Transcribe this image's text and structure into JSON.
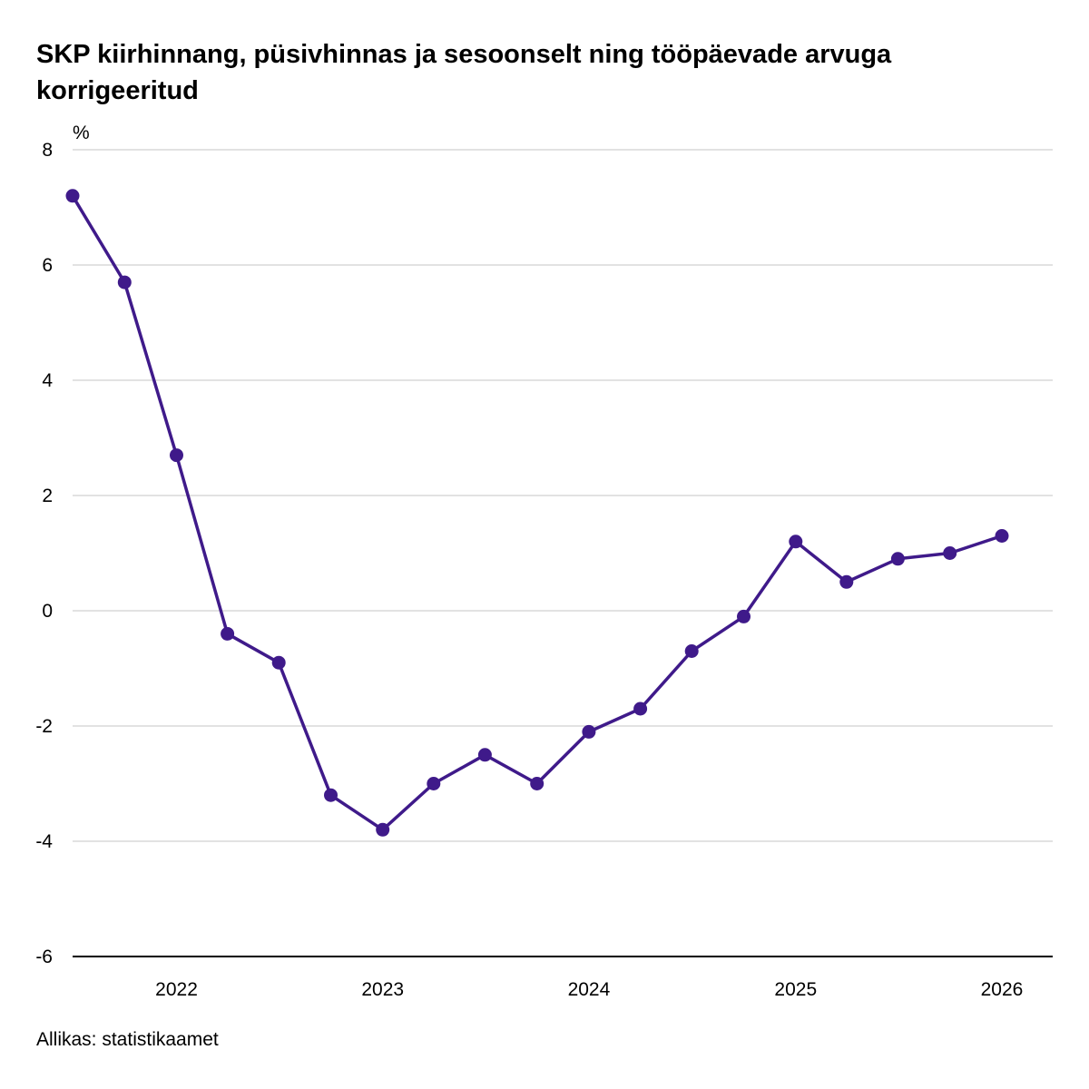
{
  "chart_data": {
    "type": "line",
    "title": "SKP kiirhinnang, püsivhinnas ja sesoonselt ning tööpäevade arvuga korrigeeritud",
    "ylabel": "%",
    "xlabel": "",
    "ylim": [
      -6,
      8
    ],
    "yticks": [
      8,
      6,
      4,
      2,
      0,
      -2,
      -4,
      -6
    ],
    "yticklabels": [
      "8",
      "6",
      "4",
      "2",
      "0",
      "-2",
      "-4",
      "-6"
    ],
    "xlim": [
      "2021-07-01",
      "2026-04-01"
    ],
    "xticks": [
      "2022-01-01",
      "2023-01-01",
      "2024-01-01",
      "2025-01-01",
      "2026-01-01"
    ],
    "xticklabels": [
      "2022",
      "2023",
      "2024",
      "2025",
      "2026"
    ],
    "grid": true,
    "legend": "none",
    "color": "#3f1a8a",
    "series": [
      {
        "x": [
          "2021-07-01",
          "2021-10-01",
          "2022-01-01",
          "2022-04-01",
          "2022-07-01",
          "2022-10-01",
          "2023-01-01",
          "2023-04-01",
          "2023-07-01",
          "2023-10-01",
          "2024-01-01",
          "2024-04-01",
          "2024-07-01",
          "2024-10-01",
          "2025-01-01",
          "2025-04-01",
          "2025-07-01",
          "2025-10-01",
          "2026-01-01"
        ],
        "values": [
          7.2,
          5.7,
          2.7,
          -0.4,
          -0.9,
          -3.2,
          -3.8,
          -3.0,
          -2.5,
          -3.0,
          -2.1,
          -1.7,
          -0.7,
          -0.1,
          1.2,
          0.5,
          0.9,
          1.0,
          1.3
        ]
      }
    ]
  },
  "source": "Allikas: statistikaamet"
}
